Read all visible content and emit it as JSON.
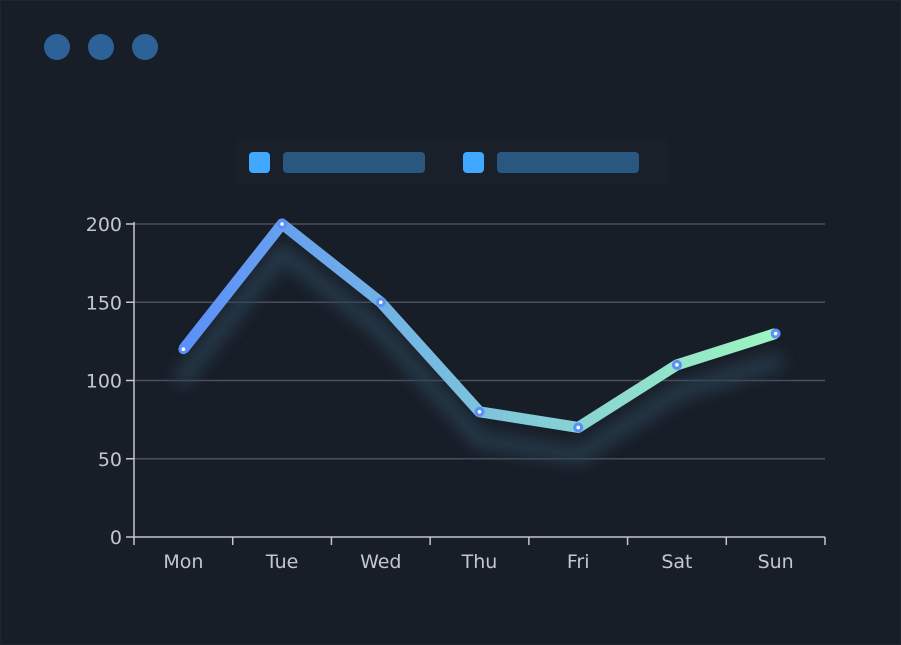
{
  "window": {
    "dots": [
      "dot-1",
      "dot-2",
      "dot-3"
    ],
    "dot_color": "#2c6298"
  },
  "legend": {
    "swatch_color": "#40a9ff",
    "placeholder_color": "#2a5780",
    "items": [
      {
        "name": ""
      },
      {
        "name": ""
      }
    ]
  },
  "chart_data": {
    "type": "line",
    "categories": [
      "Mon",
      "Tue",
      "Wed",
      "Thu",
      "Fri",
      "Sat",
      "Sun"
    ],
    "series": [
      {
        "values": [
          120,
          200,
          150,
          80,
          70,
          110,
          130
        ]
      }
    ],
    "ylim": [
      0,
      200
    ],
    "yticks": [
      0,
      50,
      100,
      150,
      200
    ],
    "grid": true,
    "legend_position": "top-center",
    "line_gradient": [
      "#5b8ff9",
      "#9ef6c0"
    ],
    "marker_color": "#5b8ff9",
    "shadow": true,
    "xlabel": "",
    "ylabel": "",
    "title": ""
  }
}
